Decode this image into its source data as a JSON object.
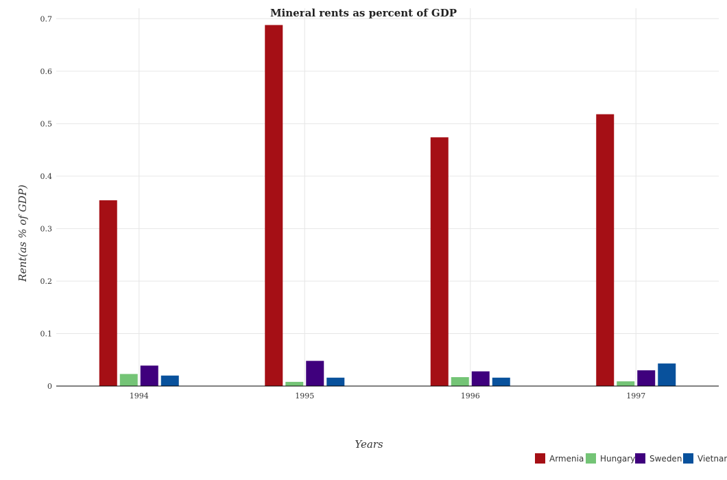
{
  "chart_data": {
    "type": "bar",
    "title": "Mineral rents as percent of GDP",
    "xlabel": "Years",
    "ylabel": "Rent(as % of GDP)",
    "categories": [
      "1994",
      "1995",
      "1996",
      "1997"
    ],
    "ylim": [
      0,
      0.72
    ],
    "yticks": [
      0,
      0.1,
      0.2,
      0.3,
      0.4,
      0.5,
      0.6,
      0.7
    ],
    "ytick_labels": [
      "0",
      "0.1",
      "0.2",
      "0.3",
      "0.4",
      "0.5",
      "0.6",
      "0.7"
    ],
    "grid": true,
    "legend_position": "bottom-right",
    "series": [
      {
        "name": "Armenia",
        "color": "#a50f15",
        "values": [
          0.354,
          0.688,
          0.474,
          0.518
        ]
      },
      {
        "name": "Hungary",
        "color": "#74c476",
        "values": [
          0.023,
          0.008,
          0.017,
          0.009
        ]
      },
      {
        "name": "Sweden",
        "color": "#3f007d",
        "values": [
          0.039,
          0.048,
          0.028,
          0.03
        ]
      },
      {
        "name": "Vietnam",
        "color": "#08519c",
        "values": [
          0.02,
          0.016,
          0.016,
          0.043
        ]
      }
    ]
  }
}
